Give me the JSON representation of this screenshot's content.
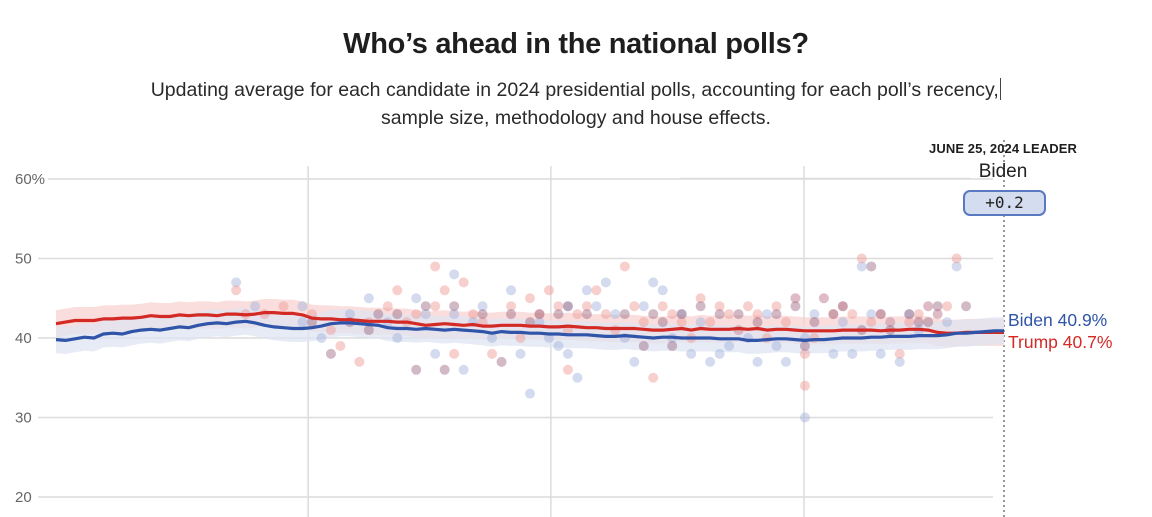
{
  "header": {
    "title": "Who’s ahead in the national polls?",
    "subtitle_line1": "Updating average for each candidate in 2024 presidential polls, accounting for each poll’s recency,",
    "subtitle_line2": "sample size, methodology and house effects."
  },
  "leader": {
    "heading": "JUNE 25, 2024 LEADER",
    "name": "Biden",
    "margin": "+0.2"
  },
  "colors": {
    "biden": "#2f54a8",
    "trump": "#d42a26",
    "biden_band": "#dfe4f2",
    "trump_band": "#f7d3d2",
    "grid": "#dcdcdc"
  },
  "chart_data": {
    "type": "line",
    "title": "Who’s ahead in the national polls?",
    "xlabel": "",
    "ylabel": "",
    "ylim": [
      20,
      60
    ],
    "yticks": [
      60,
      50,
      40,
      30,
      20
    ],
    "ytick_labels": [
      "60%",
      "50",
      "40",
      "30",
      "20"
    ],
    "grid": true,
    "x_index_range": [
      0,
      100
    ],
    "x_gridlines_at_index": [
      26.6,
      52.2,
      78.9
    ],
    "legend": "end-of-line labels (right)",
    "series": [
      {
        "name": "Biden",
        "end_label": "Biden 40.9%",
        "final_value": 40.9,
        "values": [
          39.8,
          39.7,
          39.9,
          40.1,
          40.0,
          40.5,
          40.6,
          40.5,
          40.8,
          41.0,
          41.1,
          41.0,
          41.2,
          41.4,
          41.3,
          41.6,
          41.8,
          41.9,
          41.8,
          42.0,
          42.1,
          41.9,
          41.6,
          41.4,
          41.3,
          41.2,
          41.2,
          41.3,
          41.5,
          41.8,
          41.9,
          41.9,
          41.8,
          41.7,
          41.6,
          41.3,
          41.2,
          41.2,
          41.1,
          41.2,
          41.1,
          41.0,
          41.1,
          41.0,
          40.9,
          40.8,
          40.6,
          40.8,
          40.7,
          40.7,
          40.6,
          40.6,
          40.5,
          40.5,
          40.4,
          40.4,
          40.4,
          40.3,
          40.2,
          40.2,
          40.3,
          40.2,
          40.1,
          40.0,
          40.1,
          40.1,
          40.0,
          40.0,
          40.0,
          40.0,
          39.9,
          39.9,
          39.9,
          39.7,
          39.7,
          39.8,
          39.9,
          39.9,
          39.8,
          39.7,
          39.8,
          39.8,
          39.9,
          40.0,
          40.0,
          40.0,
          40.1,
          40.1,
          40.2,
          40.2,
          40.2,
          40.3,
          40.3,
          40.3,
          40.4,
          40.6,
          40.6,
          40.7,
          40.8,
          40.9,
          40.9
        ]
      },
      {
        "name": "Trump",
        "end_label": "Trump 40.7%",
        "final_value": 40.7,
        "values": [
          41.8,
          42.0,
          42.2,
          42.2,
          42.2,
          42.4,
          42.4,
          42.5,
          42.5,
          42.6,
          42.8,
          42.7,
          42.7,
          42.9,
          42.8,
          42.9,
          42.9,
          42.8,
          43.0,
          43.0,
          42.9,
          43.0,
          43.2,
          43.2,
          43.1,
          43.1,
          42.9,
          42.5,
          42.4,
          42.4,
          42.3,
          42.3,
          42.2,
          42.1,
          42.1,
          42.1,
          42.0,
          42.0,
          41.8,
          41.6,
          41.7,
          41.8,
          41.7,
          41.6,
          41.7,
          41.5,
          41.5,
          41.6,
          41.6,
          41.6,
          41.5,
          41.5,
          41.4,
          41.4,
          41.5,
          41.4,
          41.3,
          41.3,
          41.2,
          41.2,
          41.2,
          41.2,
          41.1,
          41.0,
          41.0,
          41.1,
          41.2,
          41.0,
          41.2,
          41.1,
          41.1,
          41.1,
          41.2,
          41.1,
          41.2,
          41.0,
          41.1,
          41.1,
          41.0,
          40.9,
          40.9,
          40.9,
          40.9,
          41.0,
          41.0,
          41.0,
          41.0,
          40.9,
          41.0,
          41.0,
          41.1,
          41.1,
          41.0,
          40.7,
          40.6,
          40.6,
          40.7,
          40.7,
          40.7,
          40.7,
          40.7
        ]
      }
    ],
    "polls": {
      "biden": [
        [
          19,
          47
        ],
        [
          21,
          44
        ],
        [
          26,
          44
        ],
        [
          26,
          42
        ],
        [
          28,
          40
        ],
        [
          31,
          43
        ],
        [
          33,
          45
        ],
        [
          35,
          42
        ],
        [
          36,
          40
        ],
        [
          38,
          45
        ],
        [
          39,
          43
        ],
        [
          40,
          38
        ],
        [
          42,
          48
        ],
        [
          42,
          43
        ],
        [
          43,
          36
        ],
        [
          44,
          42
        ],
        [
          45,
          44
        ],
        [
          46,
          40
        ],
        [
          48,
          46
        ],
        [
          49,
          38
        ],
        [
          50,
          33
        ],
        [
          51,
          42
        ],
        [
          52,
          40
        ],
        [
          53,
          39
        ],
        [
          54,
          44
        ],
        [
          54,
          38
        ],
        [
          55,
          35
        ],
        [
          56,
          46
        ],
        [
          57,
          44
        ],
        [
          58,
          47
        ],
        [
          59,
          43
        ],
        [
          60,
          40
        ],
        [
          61,
          37
        ],
        [
          62,
          44
        ],
        [
          63,
          47
        ],
        [
          64,
          46
        ],
        [
          65,
          40
        ],
        [
          66,
          43
        ],
        [
          67,
          38
        ],
        [
          68,
          42
        ],
        [
          69,
          37
        ],
        [
          70,
          38
        ],
        [
          71,
          39
        ],
        [
          72,
          41
        ],
        [
          73,
          40
        ],
        [
          74,
          37
        ],
        [
          75,
          43
        ],
        [
          76,
          39
        ],
        [
          77,
          37
        ],
        [
          78,
          45
        ],
        [
          79,
          40
        ],
        [
          79,
          30
        ],
        [
          80,
          43
        ],
        [
          81,
          45
        ],
        [
          82,
          38
        ],
        [
          83,
          42
        ],
        [
          84,
          38
        ],
        [
          85,
          49
        ],
        [
          86,
          43
        ],
        [
          87,
          38
        ],
        [
          88,
          42
        ],
        [
          89,
          37
        ],
        [
          90,
          43
        ],
        [
          91,
          41
        ],
        [
          92,
          44
        ],
        [
          93,
          43
        ],
        [
          94,
          42
        ],
        [
          95,
          49
        ]
      ],
      "trump": [
        [
          19,
          46
        ],
        [
          20,
          43
        ],
        [
          22,
          43
        ],
        [
          24,
          44
        ],
        [
          27,
          43
        ],
        [
          29,
          41
        ],
        [
          30,
          39
        ],
        [
          32,
          37
        ],
        [
          33,
          42
        ],
        [
          35,
          44
        ],
        [
          36,
          46
        ],
        [
          37,
          42
        ],
        [
          38,
          43
        ],
        [
          40,
          49
        ],
        [
          40,
          44
        ],
        [
          41,
          46
        ],
        [
          42,
          38
        ],
        [
          43,
          47
        ],
        [
          44,
          43
        ],
        [
          45,
          42
        ],
        [
          46,
          38
        ],
        [
          48,
          44
        ],
        [
          49,
          40
        ],
        [
          50,
          45
        ],
        [
          51,
          43
        ],
        [
          52,
          46
        ],
        [
          53,
          44
        ],
        [
          54,
          41
        ],
        [
          54,
          36
        ],
        [
          55,
          43
        ],
        [
          56,
          44
        ],
        [
          57,
          46
        ],
        [
          58,
          43
        ],
        [
          59,
          41
        ],
        [
          60,
          49
        ],
        [
          61,
          44
        ],
        [
          62,
          42
        ],
        [
          63,
          35
        ],
        [
          64,
          44
        ],
        [
          65,
          43
        ],
        [
          66,
          42
        ],
        [
          67,
          40
        ],
        [
          68,
          45
        ],
        [
          69,
          42
        ],
        [
          70,
          44
        ],
        [
          71,
          43
        ],
        [
          72,
          41
        ],
        [
          73,
          44
        ],
        [
          74,
          43
        ],
        [
          75,
          40
        ],
        [
          76,
          44
        ],
        [
          77,
          42
        ],
        [
          78,
          45
        ],
        [
          79,
          34
        ],
        [
          79,
          38
        ],
        [
          80,
          40
        ],
        [
          81,
          45
        ],
        [
          82,
          43
        ],
        [
          83,
          44
        ],
        [
          84,
          43
        ],
        [
          85,
          50
        ],
        [
          86,
          42
        ],
        [
          87,
          43
        ],
        [
          88,
          42
        ],
        [
          89,
          38
        ],
        [
          90,
          42
        ],
        [
          91,
          43
        ],
        [
          92,
          44
        ],
        [
          93,
          43
        ],
        [
          94,
          44
        ],
        [
          95,
          50
        ]
      ],
      "overlap": [
        [
          27,
          42
        ],
        [
          29,
          38
        ],
        [
          31,
          42
        ],
        [
          33,
          41
        ],
        [
          34,
          43
        ],
        [
          36,
          43
        ],
        [
          38,
          36
        ],
        [
          39,
          44
        ],
        [
          41,
          36
        ],
        [
          42,
          44
        ],
        [
          45,
          43
        ],
        [
          47,
          37
        ],
        [
          48,
          43
        ],
        [
          50,
          42
        ],
        [
          51,
          43
        ],
        [
          53,
          43
        ],
        [
          54,
          44
        ],
        [
          56,
          43
        ],
        [
          60,
          43
        ],
        [
          62,
          39
        ],
        [
          63,
          43
        ],
        [
          64,
          42
        ],
        [
          65,
          39
        ],
        [
          66,
          43
        ],
        [
          68,
          44
        ],
        [
          70,
          43
        ],
        [
          72,
          43
        ],
        [
          74,
          42
        ],
        [
          76,
          43
        ],
        [
          78,
          44
        ],
        [
          79,
          39
        ],
        [
          80,
          42
        ],
        [
          82,
          43
        ],
        [
          83,
          44
        ],
        [
          85,
          41
        ],
        [
          86,
          49
        ],
        [
          87,
          43
        ],
        [
          88,
          41
        ],
        [
          90,
          43
        ],
        [
          91,
          42
        ],
        [
          92,
          42
        ],
        [
          93,
          44
        ],
        [
          96,
          44
        ]
      ]
    }
  }
}
